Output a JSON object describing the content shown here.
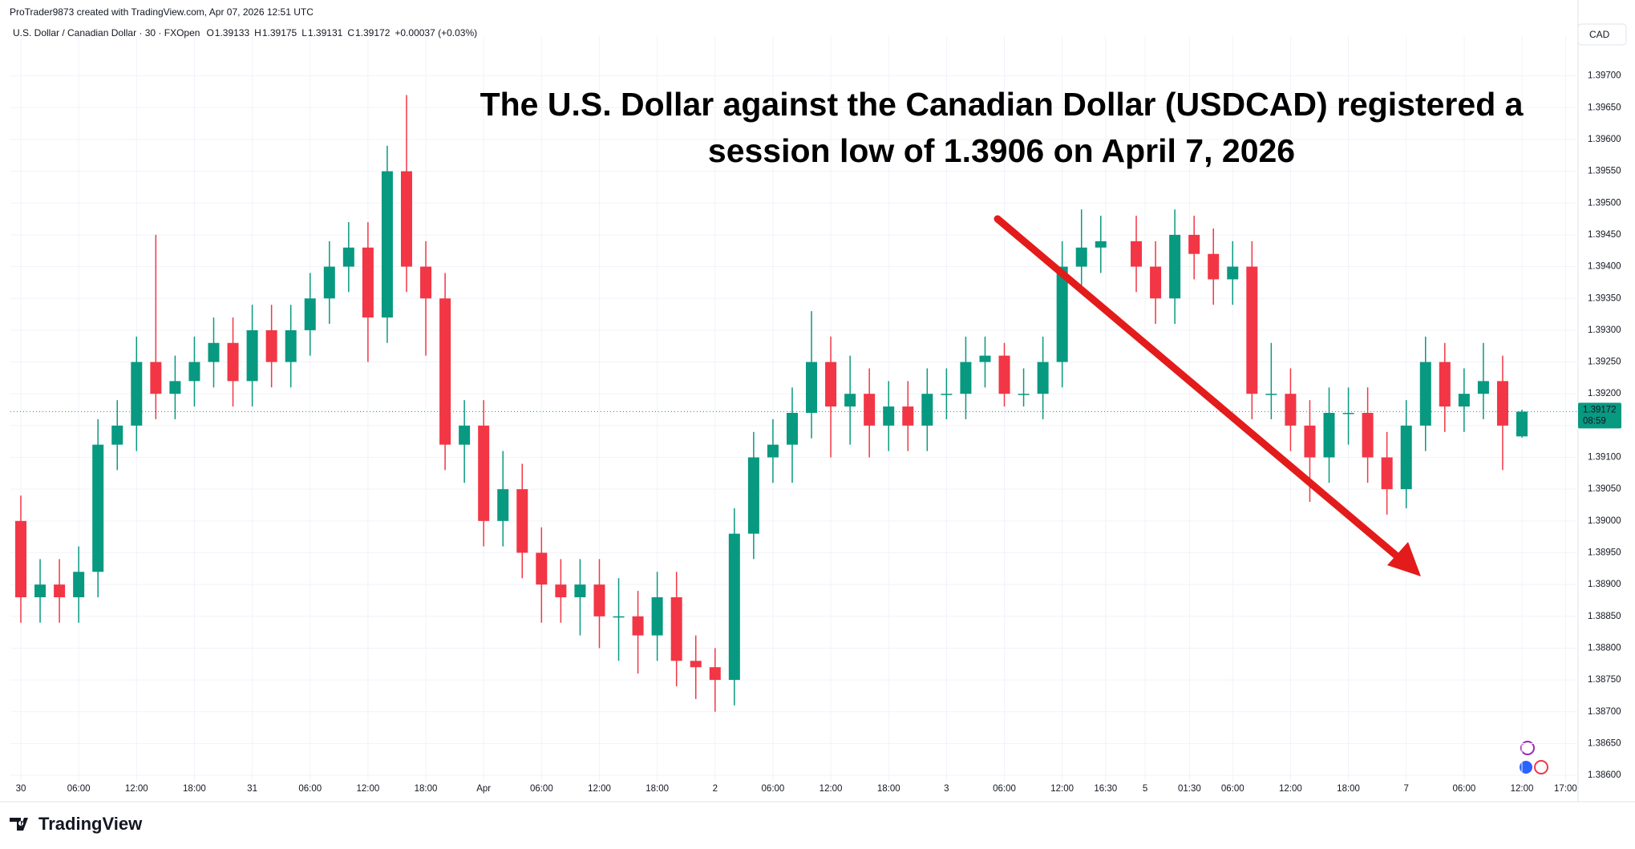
{
  "header": {
    "credit": "ProTrader9873 created with TradingView.com, Apr 07, 2026 12:51 UTC",
    "symbol": "U.S. Dollar / Canadian Dollar · 30 · FXOpen",
    "ohlc_letters": [
      "O",
      "H",
      "L",
      "C"
    ],
    "change": "+0.00037 (+0.03%)",
    "currency": "CAD",
    "countdown": "08:59",
    "brand": "TradingView"
  },
  "chart_data": {
    "type": "candlestick",
    "annotation": [
      "The U.S. Dollar against the Canadian Dollar (USDCAD) registered a",
      "session low of 1.3906 on April 7, 2026"
    ],
    "up_color": "#089981",
    "down_color": "#f23645",
    "grid": true,
    "x": [
      0,
      1,
      2,
      3,
      4,
      5,
      6,
      7,
      8,
      9,
      10,
      11,
      12,
      13,
      14,
      15,
      16,
      17,
      18,
      19,
      20,
      21,
      22,
      23,
      24,
      25,
      26,
      27,
      28,
      29,
      30,
      31,
      32,
      33,
      34,
      35,
      36,
      37,
      38,
      39,
      40,
      41,
      42,
      43,
      44,
      45,
      46,
      47,
      48,
      49,
      50,
      51,
      52,
      53,
      54,
      55,
      56,
      57.84,
      58.84,
      59.84,
      60.84,
      61.84,
      62.84,
      63.84,
      64.84,
      65.84,
      66.84,
      67.84,
      68.84,
      69.84,
      70.84,
      71.84,
      72.84,
      73.84,
      74.84,
      75.84,
      76.84,
      77.84
    ],
    "open": [
      1.39,
      1.3888,
      1.389,
      1.3888,
      1.3892,
      1.3912,
      1.3915,
      1.3925,
      1.392,
      1.3922,
      1.3925,
      1.3928,
      1.3922,
      1.393,
      1.3925,
      1.393,
      1.3935,
      1.394,
      1.3943,
      1.3932,
      1.3955,
      1.394,
      1.3935,
      1.3912,
      1.3915,
      1.39,
      1.3905,
      1.3895,
      1.389,
      1.3888,
      1.389,
      1.3885,
      1.3885,
      1.3882,
      1.3888,
      1.3878,
      1.3877,
      1.3875,
      1.3898,
      1.391,
      1.3912,
      1.3917,
      1.3925,
      1.3918,
      1.392,
      1.3915,
      1.3918,
      1.3915,
      1.392,
      1.392,
      1.3925,
      1.3926,
      1.392,
      1.392,
      1.3925,
      1.394,
      1.3943,
      1.3944,
      1.394,
      1.3935,
      1.3945,
      1.3942,
      1.3938,
      1.394,
      1.392,
      1.392,
      1.3915,
      1.391,
      1.3917,
      1.3917,
      1.391,
      1.3905,
      1.3915,
      1.3925,
      1.3918,
      1.392,
      1.3922,
      1.39133
    ],
    "high": [
      1.3904,
      1.3894,
      1.3894,
      1.3896,
      1.3916,
      1.3919,
      1.3929,
      1.3945,
      1.3926,
      1.3929,
      1.3932,
      1.3932,
      1.3934,
      1.3934,
      1.3934,
      1.3939,
      1.3944,
      1.3947,
      1.3947,
      1.3959,
      1.3967,
      1.3944,
      1.3939,
      1.3919,
      1.3919,
      1.3911,
      1.3909,
      1.3899,
      1.3894,
      1.3894,
      1.3894,
      1.3891,
      1.3889,
      1.3892,
      1.3892,
      1.3882,
      1.388,
      1.3902,
      1.3914,
      1.3916,
      1.3921,
      1.3933,
      1.3929,
      1.3926,
      1.3924,
      1.3922,
      1.3922,
      1.3924,
      1.3924,
      1.3929,
      1.3929,
      1.3928,
      1.3924,
      1.3929,
      1.3944,
      1.3949,
      1.3948,
      1.3948,
      1.3944,
      1.3949,
      1.3948,
      1.3946,
      1.3944,
      1.3944,
      1.3928,
      1.3924,
      1.3919,
      1.3921,
      1.3921,
      1.3921,
      1.3914,
      1.3919,
      1.3929,
      1.3928,
      1.3924,
      1.3928,
      1.3926,
      1.39175
    ],
    "low": [
      1.3884,
      1.3884,
      1.3884,
      1.3884,
      1.3888,
      1.3908,
      1.3911,
      1.3916,
      1.3916,
      1.3918,
      1.3921,
      1.3918,
      1.3918,
      1.3921,
      1.3921,
      1.3926,
      1.3931,
      1.3936,
      1.3925,
      1.3928,
      1.3936,
      1.3926,
      1.3908,
      1.3906,
      1.3896,
      1.3896,
      1.3891,
      1.3884,
      1.3884,
      1.3882,
      1.388,
      1.3878,
      1.3876,
      1.3878,
      1.3874,
      1.3872,
      1.387,
      1.3871,
      1.3894,
      1.3906,
      1.3906,
      1.3913,
      1.391,
      1.3912,
      1.391,
      1.3911,
      1.3911,
      1.3911,
      1.3916,
      1.3916,
      1.3921,
      1.3918,
      1.3918,
      1.3916,
      1.3921,
      1.3936,
      1.3939,
      1.3936,
      1.3931,
      1.3931,
      1.3938,
      1.3934,
      1.3934,
      1.3916,
      1.3916,
      1.3911,
      1.3903,
      1.3906,
      1.3912,
      1.3906,
      1.3901,
      1.3902,
      1.3911,
      1.3914,
      1.3914,
      1.3916,
      1.3908,
      1.39131
    ],
    "close": [
      1.3888,
      1.389,
      1.3888,
      1.3892,
      1.3912,
      1.3915,
      1.3925,
      1.392,
      1.3922,
      1.3925,
      1.3928,
      1.3922,
      1.393,
      1.3925,
      1.393,
      1.3935,
      1.394,
      1.3943,
      1.3932,
      1.3955,
      1.394,
      1.3935,
      1.3912,
      1.3915,
      1.39,
      1.3905,
      1.3895,
      1.389,
      1.3888,
      1.389,
      1.3885,
      1.3885,
      1.3882,
      1.3888,
      1.3878,
      1.3877,
      1.3875,
      1.3898,
      1.391,
      1.3912,
      1.3917,
      1.3925,
      1.3918,
      1.392,
      1.3915,
      1.3918,
      1.3915,
      1.392,
      1.392,
      1.3925,
      1.3926,
      1.392,
      1.392,
      1.3925,
      1.394,
      1.3943,
      1.3944,
      1.394,
      1.3935,
      1.3945,
      1.3942,
      1.3938,
      1.394,
      1.392,
      1.392,
      1.3915,
      1.391,
      1.3917,
      1.3917,
      1.391,
      1.3905,
      1.3915,
      1.3925,
      1.3918,
      1.392,
      1.3922,
      1.3915,
      1.39172
    ],
    "xlim": [
      -0.54,
      80.75
    ],
    "ylim": [
      1.3859,
      1.3975
    ],
    "xticks": [
      {
        "value": 0,
        "label": "30"
      },
      {
        "value": 3,
        "label": "06:00"
      },
      {
        "value": 6,
        "label": "12:00"
      },
      {
        "value": 9,
        "label": "18:00"
      },
      {
        "value": 12,
        "label": "31"
      },
      {
        "value": 15,
        "label": "06:00"
      },
      {
        "value": 18,
        "label": "12:00"
      },
      {
        "value": 21,
        "label": "18:00"
      },
      {
        "value": 24,
        "label": "Apr"
      },
      {
        "value": 27,
        "label": "06:00"
      },
      {
        "value": 30,
        "label": "12:00"
      },
      {
        "value": 33,
        "label": "18:00"
      },
      {
        "value": 36,
        "label": "2"
      },
      {
        "value": 39,
        "label": "06:00"
      },
      {
        "value": 42,
        "label": "12:00"
      },
      {
        "value": 45,
        "label": "18:00"
      },
      {
        "value": 48,
        "label": "3"
      },
      {
        "value": 51,
        "label": "06:00"
      },
      {
        "value": 54,
        "label": "12:00"
      },
      {
        "value": 56.25,
        "label": "16:30"
      },
      {
        "value": 58.3,
        "label": "5"
      },
      {
        "value": 60.6,
        "label": "01:30"
      },
      {
        "value": 62.84,
        "label": "06:00"
      },
      {
        "value": 65.84,
        "label": "12:00"
      },
      {
        "value": 68.84,
        "label": "18:00"
      },
      {
        "value": 71.84,
        "label": "7"
      },
      {
        "value": 74.84,
        "label": "06:00"
      },
      {
        "value": 77.84,
        "label": "12:00"
      },
      {
        "value": 80.1,
        "label": "17:00"
      }
    ],
    "yticks": [
      {
        "value": 1.386,
        "label": "1.38600"
      },
      {
        "value": 1.3865,
        "label": "1.38650"
      },
      {
        "value": 1.387,
        "label": "1.38700"
      },
      {
        "value": 1.3875,
        "label": "1.38750"
      },
      {
        "value": 1.388,
        "label": "1.38800"
      },
      {
        "value": 1.3885,
        "label": "1.38850"
      },
      {
        "value": 1.389,
        "label": "1.38900"
      },
      {
        "value": 1.3895,
        "label": "1.38950"
      },
      {
        "value": 1.39,
        "label": "1.39000"
      },
      {
        "value": 1.3905,
        "label": "1.39050"
      },
      {
        "value": 1.391,
        "label": "1.39100"
      },
      {
        "value": 1.3915,
        "label": "1.39150"
      },
      {
        "value": 1.392,
        "label": "1.39200"
      },
      {
        "value": 1.3925,
        "label": "1.39250"
      },
      {
        "value": 1.393,
        "label": "1.39300"
      },
      {
        "value": 1.3935,
        "label": "1.39350"
      },
      {
        "value": 1.394,
        "label": "1.39400"
      },
      {
        "value": 1.3945,
        "label": "1.39450"
      },
      {
        "value": 1.395,
        "label": "1.39500"
      },
      {
        "value": 1.3955,
        "label": "1.39550"
      },
      {
        "value": 1.396,
        "label": "1.39600"
      },
      {
        "value": 1.3965,
        "label": "1.39650"
      },
      {
        "value": 1.397,
        "label": "1.39700"
      }
    ]
  }
}
